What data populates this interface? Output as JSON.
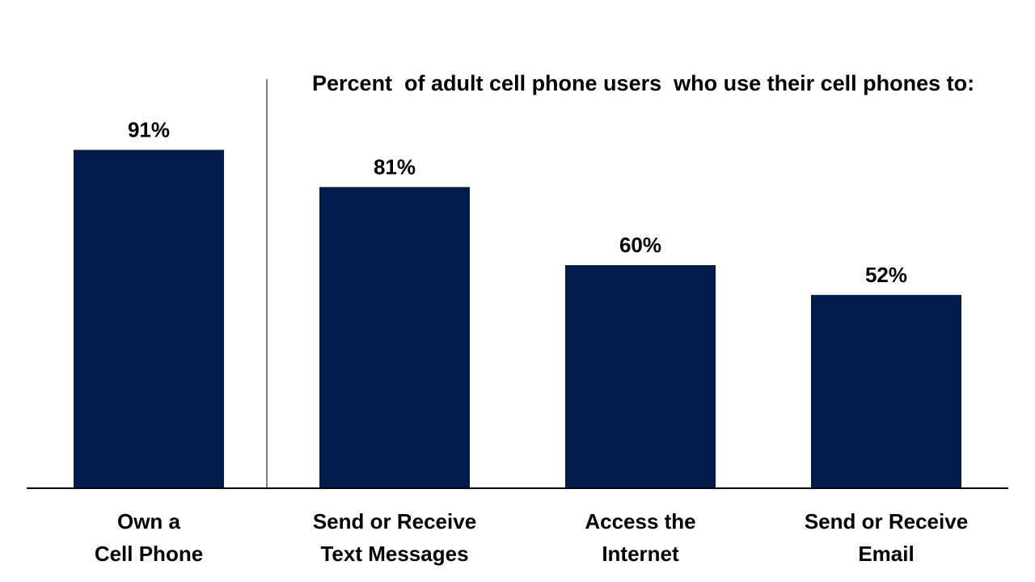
{
  "chart_data": {
    "type": "bar",
    "title": "Percent  of adult cell phone users  who use their cell phones to:",
    "categories": [
      [
        "Own a",
        "Cell Phone"
      ],
      [
        "Send or Receive",
        "Text Messages"
      ],
      [
        "Access the",
        "Internet"
      ],
      [
        "Send or Receive",
        "Email"
      ]
    ],
    "values": [
      91,
      81,
      60,
      52
    ],
    "data_labels": [
      "91%",
      "81%",
      "60%",
      "52%"
    ],
    "ylim": [
      0,
      100
    ],
    "grid": false,
    "legend": "none",
    "bar_color": "#001c4a",
    "axis_color": "#000000",
    "divider_color": "#555555"
  }
}
